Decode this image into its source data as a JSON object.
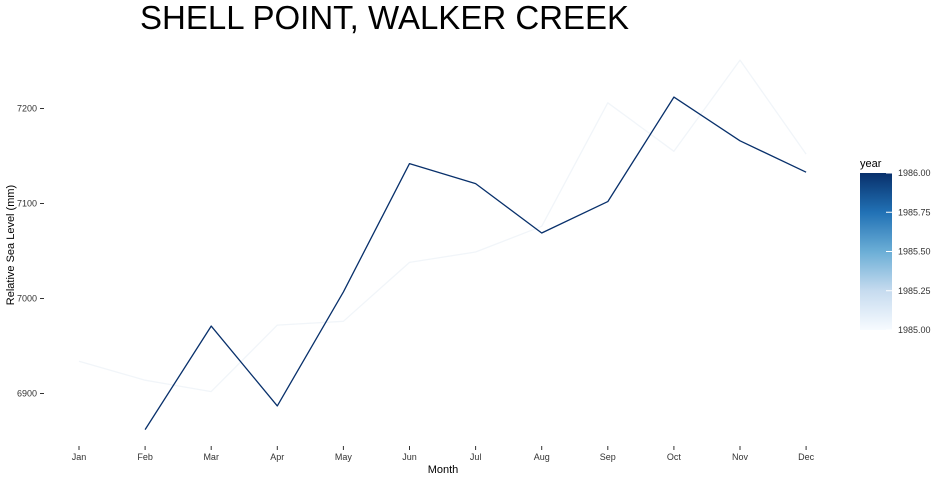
{
  "chart_data": {
    "type": "line",
    "title": "SHELL POINT, WALKER CREEK",
    "xlabel": "Month",
    "ylabel": "Relative Sea Level (mm)",
    "categories": [
      "Jan",
      "Feb",
      "Mar",
      "Apr",
      "May",
      "Jun",
      "Jul",
      "Aug",
      "Sep",
      "Oct",
      "Nov",
      "Dec"
    ],
    "ylim": [
      6850,
      7260
    ],
    "y_ticks": [
      6900,
      7000,
      7100,
      7200
    ],
    "y_tick_labels": [
      "6900",
      "7000",
      "7100",
      "7200"
    ],
    "grid": false,
    "legend": {
      "title": "year",
      "position": "right",
      "type": "colorbar",
      "range": [
        1985.0,
        1986.0
      ],
      "ticks": [
        1985.0,
        1985.25,
        1985.5,
        1985.75,
        1986.0
      ],
      "tick_labels": [
        "1985.00",
        "1985.25",
        "1985.50",
        "1985.75",
        "1986.00"
      ],
      "low_color": "#f7fbff",
      "high_color": "#08306b"
    },
    "series": [
      {
        "year": 1985,
        "color": "#f7fbff",
        "values": [
          6934,
          6914,
          6902,
          6972,
          6976,
          7038,
          7049,
          7076,
          7206,
          7155,
          7251,
          7152
        ]
      },
      {
        "year": 1986,
        "color": "#08306b",
        "values": [
          null,
          6862,
          6971,
          6887,
          7007,
          7142,
          7121,
          7069,
          7102,
          7212,
          7166,
          7133
        ]
      }
    ]
  }
}
